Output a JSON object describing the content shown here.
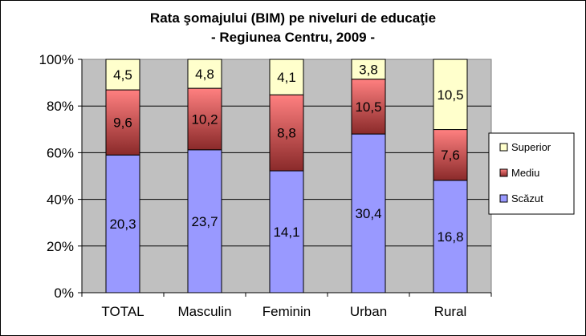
{
  "chart_data": {
    "type": "stacked-bar-100",
    "title_lines": [
      "Rata şomajului (BIM) pe niveluri de educaţie",
      "- Regiunea Centru, 2009 -"
    ],
    "categories": [
      "TOTAL",
      "Masculin",
      "Feminin",
      "Urban",
      "Rural"
    ],
    "series": [
      {
        "name": "Scăzut",
        "color": "#9999ff",
        "values": [
          20.3,
          23.7,
          14.1,
          30.4,
          16.8
        ],
        "labels": [
          "20,3",
          "23,7",
          "14,1",
          "30,4",
          "16,8"
        ]
      },
      {
        "name": "Mediu",
        "color": "#ff7a7a",
        "values": [
          9.6,
          10.2,
          8.8,
          10.5,
          7.6
        ],
        "labels": [
          "9,6",
          "10,2",
          "8,8",
          "10,5",
          "7,6"
        ]
      },
      {
        "name": "Superior",
        "color": "#ffffcc",
        "values": [
          4.5,
          4.8,
          4.1,
          3.8,
          10.5
        ],
        "labels": [
          "4,5",
          "4,8",
          "4,1",
          "3,8",
          "10,5"
        ]
      }
    ],
    "y_ticks": [
      "0%",
      "20%",
      "40%",
      "60%",
      "80%",
      "100%"
    ],
    "ylim": [
      0,
      100
    ],
    "plot_background": "#c0c0c0",
    "legend_position": "right",
    "legend_order": [
      "Superior",
      "Mediu",
      "Scăzut"
    ]
  }
}
